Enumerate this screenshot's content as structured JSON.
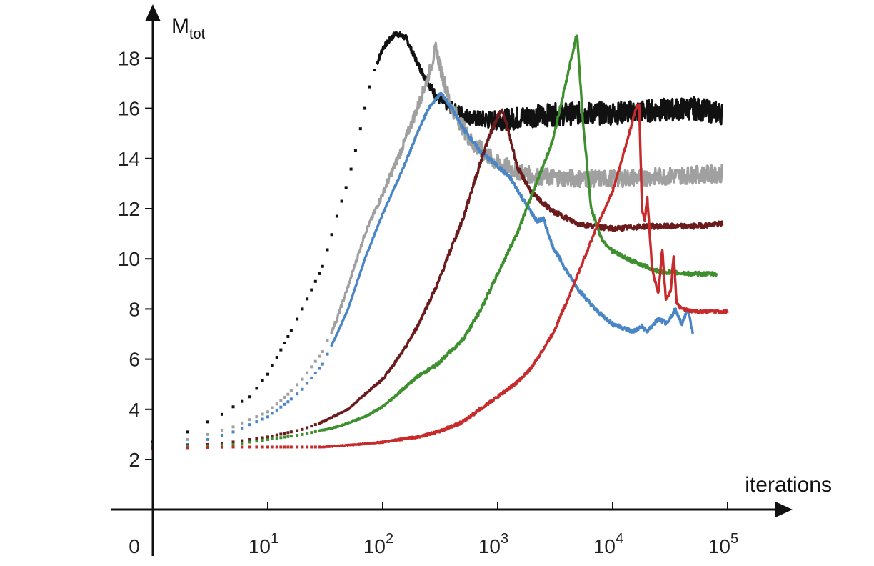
{
  "chart_data": {
    "type": "line",
    "title": "",
    "xlabel": "iterations",
    "ylabel_main": "M",
    "ylabel_sub": "tot",
    "x_scale": "log",
    "x_origin_label": "0",
    "xticks": [
      {
        "base": "10",
        "exp": "1",
        "value": 10
      },
      {
        "base": "10",
        "exp": "2",
        "value": 100
      },
      {
        "base": "10",
        "exp": "3",
        "value": 1000
      },
      {
        "base": "10",
        "exp": "4",
        "value": 10000
      },
      {
        "base": "10",
        "exp": "5",
        "value": 100000
      }
    ],
    "yticks": [
      "2",
      "4",
      "6",
      "8",
      "10",
      "12",
      "14",
      "16",
      "18"
    ],
    "ylim": [
      1,
      19.5
    ],
    "xlim": [
      1,
      100000
    ],
    "legend": "none",
    "grid": false,
    "series": [
      {
        "color": "#111111",
        "style": "dots_then_noisy_line",
        "noise": 0.45,
        "points": [
          [
            1,
            2.7
          ],
          [
            2,
            3.1
          ],
          [
            3,
            3.5
          ],
          [
            4,
            3.8
          ],
          [
            5,
            4.1
          ],
          [
            7,
            4.5
          ],
          [
            10,
            5.4
          ],
          [
            15,
            6.9
          ],
          [
            20,
            8.0
          ],
          [
            30,
            9.7
          ],
          [
            40,
            11.7
          ],
          [
            50,
            13.1
          ],
          [
            60,
            14.6
          ],
          [
            70,
            16.0
          ],
          [
            80,
            17.2
          ],
          [
            100,
            18.4
          ],
          [
            130,
            19.0
          ],
          [
            160,
            18.8
          ],
          [
            200,
            17.8
          ],
          [
            250,
            17.0
          ],
          [
            300,
            16.4
          ],
          [
            400,
            16.0
          ],
          [
            600,
            15.6
          ],
          [
            1000,
            15.5
          ],
          [
            2000,
            15.7
          ],
          [
            5000,
            15.8
          ],
          [
            10000,
            15.8
          ],
          [
            20000,
            15.9
          ],
          [
            50000,
            16.0
          ],
          [
            90000,
            15.8
          ]
        ]
      },
      {
        "color": "#a0a0a0",
        "style": "dots_then_noisy_line",
        "noise": 0.35,
        "points": [
          [
            1,
            2.6
          ],
          [
            2,
            2.8
          ],
          [
            3,
            3.0
          ],
          [
            5,
            3.3
          ],
          [
            10,
            3.9
          ],
          [
            15,
            4.6
          ],
          [
            20,
            5.2
          ],
          [
            30,
            6.3
          ],
          [
            40,
            7.6
          ],
          [
            50,
            8.9
          ],
          [
            70,
            11.0
          ],
          [
            100,
            12.6
          ],
          [
            150,
            14.5
          ],
          [
            200,
            16.0
          ],
          [
            250,
            17.3
          ],
          [
            290,
            18.4
          ],
          [
            330,
            17.3
          ],
          [
            400,
            16.0
          ],
          [
            600,
            14.6
          ],
          [
            1000,
            13.8
          ],
          [
            2000,
            13.3
          ],
          [
            5000,
            13.2
          ],
          [
            10000,
            13.2
          ],
          [
            30000,
            13.3
          ],
          [
            90000,
            13.4
          ]
        ]
      },
      {
        "color": "#4a86c6",
        "style": "dots_then_line",
        "noise": 0.08,
        "points": [
          [
            1,
            2.5
          ],
          [
            2,
            2.6
          ],
          [
            3,
            2.8
          ],
          [
            5,
            3.1
          ],
          [
            10,
            3.7
          ],
          [
            15,
            4.3
          ],
          [
            20,
            4.8
          ],
          [
            30,
            5.8
          ],
          [
            40,
            7.0
          ],
          [
            50,
            8.0
          ],
          [
            70,
            10.0
          ],
          [
            100,
            11.8
          ],
          [
            150,
            13.6
          ],
          [
            200,
            15.0
          ],
          [
            250,
            16.0
          ],
          [
            320,
            16.6
          ],
          [
            400,
            16.0
          ],
          [
            500,
            15.2
          ],
          [
            700,
            14.3
          ],
          [
            1000,
            13.7
          ],
          [
            1300,
            13.2
          ],
          [
            1700,
            12.3
          ],
          [
            2200,
            11.5
          ],
          [
            2500,
            11.6
          ],
          [
            3000,
            10.5
          ],
          [
            4000,
            9.5
          ],
          [
            5000,
            8.8
          ],
          [
            7000,
            8.0
          ],
          [
            10000,
            7.4
          ],
          [
            15000,
            7.1
          ],
          [
            18000,
            7.3
          ],
          [
            20000,
            7.1
          ],
          [
            25000,
            7.6
          ],
          [
            30000,
            7.4
          ],
          [
            35000,
            8.0
          ],
          [
            40000,
            7.4
          ],
          [
            45000,
            8.0
          ],
          [
            50000,
            7.0
          ]
        ]
      },
      {
        "color": "#6b1b1b",
        "style": "dots_then_line",
        "noise": 0.1,
        "points": [
          [
            1,
            2.5
          ],
          [
            3,
            2.6
          ],
          [
            5,
            2.7
          ],
          [
            10,
            2.9
          ],
          [
            20,
            3.2
          ],
          [
            30,
            3.5
          ],
          [
            50,
            4.0
          ],
          [
            70,
            4.6
          ],
          [
            100,
            5.2
          ],
          [
            150,
            6.3
          ],
          [
            200,
            7.3
          ],
          [
            300,
            9.0
          ],
          [
            400,
            10.5
          ],
          [
            500,
            11.6
          ],
          [
            600,
            12.8
          ],
          [
            800,
            14.6
          ],
          [
            1000,
            15.7
          ],
          [
            1100,
            15.9
          ],
          [
            1250,
            15.0
          ],
          [
            1500,
            13.6
          ],
          [
            2000,
            12.6
          ],
          [
            3000,
            11.9
          ],
          [
            5000,
            11.4
          ],
          [
            10000,
            11.2
          ],
          [
            20000,
            11.3
          ],
          [
            50000,
            11.3
          ],
          [
            90000,
            11.4
          ]
        ]
      },
      {
        "color": "#3e8f2e",
        "style": "dots_then_line",
        "noise": 0.08,
        "points": [
          [
            1,
            2.5
          ],
          [
            3,
            2.55
          ],
          [
            5,
            2.6
          ],
          [
            10,
            2.8
          ],
          [
            20,
            3.0
          ],
          [
            40,
            3.3
          ],
          [
            70,
            3.7
          ],
          [
            100,
            4.1
          ],
          [
            150,
            4.8
          ],
          [
            200,
            5.3
          ],
          [
            300,
            5.8
          ],
          [
            500,
            6.8
          ],
          [
            700,
            7.9
          ],
          [
            1000,
            9.4
          ],
          [
            1500,
            11.1
          ],
          [
            2000,
            12.6
          ],
          [
            3000,
            14.7
          ],
          [
            4000,
            17.2
          ],
          [
            4900,
            19.0
          ],
          [
            5500,
            15.5
          ],
          [
            6500,
            12.0
          ],
          [
            8000,
            10.8
          ],
          [
            10000,
            10.3
          ],
          [
            15000,
            9.9
          ],
          [
            25000,
            9.5
          ],
          [
            50000,
            9.4
          ],
          [
            80000,
            9.4
          ]
        ]
      },
      {
        "color": "#c62a2a",
        "style": "dots_then_line",
        "noise": 0.06,
        "points": [
          [
            1,
            2.45
          ],
          [
            5,
            2.5
          ],
          [
            10,
            2.5
          ],
          [
            30,
            2.5
          ],
          [
            60,
            2.6
          ],
          [
            100,
            2.7
          ],
          [
            200,
            2.9
          ],
          [
            300,
            3.1
          ],
          [
            500,
            3.5
          ],
          [
            700,
            4.0
          ],
          [
            1000,
            4.5
          ],
          [
            1500,
            5.1
          ],
          [
            2000,
            5.7
          ],
          [
            3000,
            7.0
          ],
          [
            4000,
            8.3
          ],
          [
            5000,
            9.4
          ],
          [
            7000,
            11.1
          ],
          [
            10000,
            12.7
          ],
          [
            13000,
            14.5
          ],
          [
            16000,
            16.0
          ],
          [
            17000,
            16.2
          ],
          [
            18000,
            12.0
          ],
          [
            19000,
            11.5
          ],
          [
            20000,
            12.5
          ],
          [
            22000,
            9.6
          ],
          [
            25000,
            8.6
          ],
          [
            27000,
            10.4
          ],
          [
            29000,
            8.4
          ],
          [
            32000,
            8.7
          ],
          [
            34000,
            10.2
          ],
          [
            36000,
            8.2
          ],
          [
            40000,
            8.0
          ],
          [
            50000,
            7.9
          ],
          [
            70000,
            7.9
          ],
          [
            100000,
            7.9
          ]
        ]
      }
    ]
  }
}
